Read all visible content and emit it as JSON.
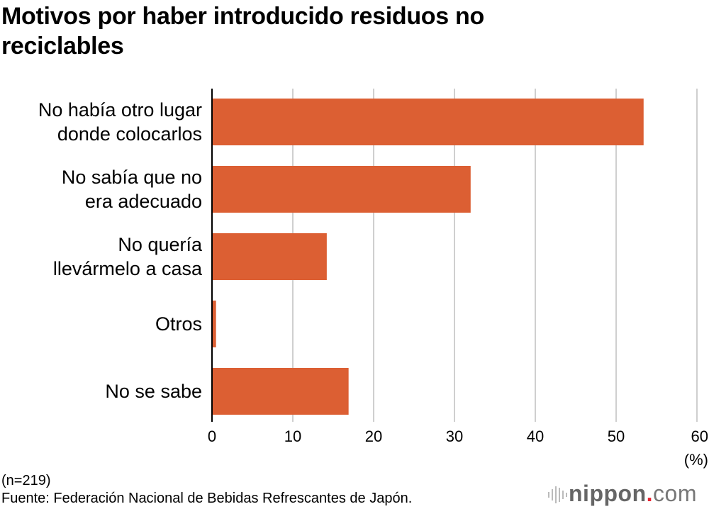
{
  "chart_data": {
    "type": "bar",
    "orientation": "horizontal",
    "title": "Motivos por haber introducido residuos no reciclables",
    "categories": [
      "No había otro lugar\ndonde colocarlos",
      "No sabía que no\nera adecuado",
      "No quería\nllevármelo a casa",
      "Otros",
      "No se sabe"
    ],
    "values": [
      53.4,
      32.0,
      14.2,
      0.5,
      16.9
    ],
    "xlim": [
      0,
      60
    ],
    "xticks": [
      0,
      10,
      20,
      30,
      40,
      50,
      60
    ],
    "xunit": "(%)",
    "grid": true,
    "bar_color": "#dc5f33"
  },
  "notes": {
    "n": "(n=219)",
    "source": "Fuente: Federación Nacional de Bebidas Refrescantes de Japón."
  },
  "logo": {
    "text": "nippon.com"
  }
}
